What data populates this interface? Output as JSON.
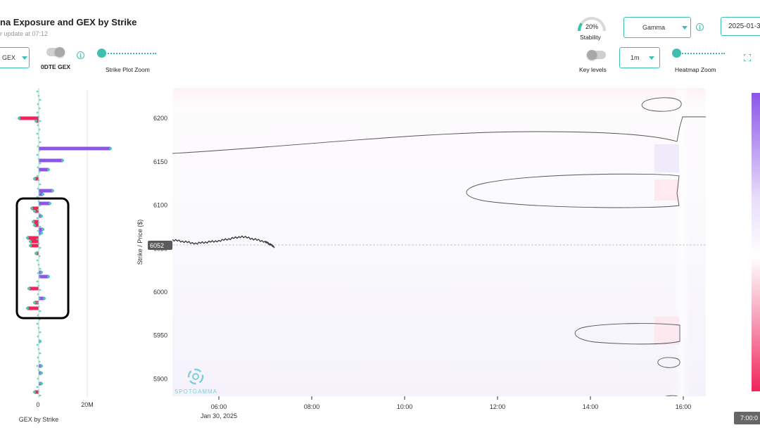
{
  "header": {
    "title": "na Exposure and GEX by Strike",
    "subtitle": "r update at 07:12"
  },
  "left_controls": {
    "gex_select": "GEX",
    "zerodte_label": "0DTE GEX",
    "strike_zoom_label": "Strike Plot Zoom"
  },
  "right_controls": {
    "stability_value": "20%",
    "stability_label": "Stability",
    "stability_fraction": 0.2,
    "measure_select": "Gamma",
    "date_select": "2025-01-3",
    "key_levels_label": "Key levels",
    "interval_select": "1m",
    "heatmap_zoom_label": "Heatmap Zoom"
  },
  "colors": {
    "accent": "#3fbfb0",
    "negative_bar": "#f0245a",
    "positive_bar": "#8b55e8",
    "dot": "#4cc9a6"
  },
  "icons": [
    "info-icon",
    "caret-down-icon",
    "fullscreen-icon",
    "spotgamma-logo-icon"
  ],
  "strike_chart": {
    "axis_label": "GEX by Strike",
    "x_ticks": [
      {
        "value": 0,
        "label": "0"
      },
      {
        "value": 20,
        "label": "20M"
      }
    ]
  },
  "chart_data": {
    "type": "heatmap",
    "ylabel": "Strike / Price ($)",
    "y_ticks": [
      5900,
      5950,
      6000,
      6050,
      6100,
      6150,
      6200
    ],
    "x_ticks": [
      "06:00",
      "08:00",
      "10:00",
      "12:00",
      "14:00",
      "16:00"
    ],
    "x_date_label": "Jan 30, 2025",
    "current_price_label": "6052",
    "time_badge": "7:00:0",
    "ylim": [
      5880,
      6235
    ],
    "price_series": [
      {
        "time": "05:00",
        "price": 6060
      },
      {
        "time": "05:30",
        "price": 6056
      },
      {
        "time": "06:00",
        "price": 6059
      },
      {
        "time": "06:30",
        "price": 6064
      },
      {
        "time": "07:00",
        "price": 6058
      },
      {
        "time": "07:12",
        "price": 6052
      }
    ]
  },
  "watermark": {
    "brand": "SPOTGAMMA"
  }
}
